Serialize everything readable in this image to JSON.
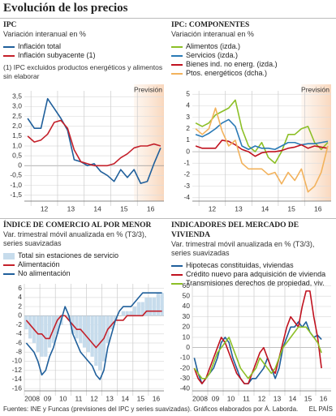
{
  "title": "Evolución de los precios",
  "source": "Fuentes: INE y Funcas (previsiones del IPC y series suavizadas). Gráficos elaborados por Á. Laborda.",
  "brand": "EL PAÍS",
  "chart_data": [
    {
      "type": "line",
      "title": "IPC",
      "subtitle": "Variación interanual en %",
      "note": "(1) IPC excluidos productos energéticos y alimentos sin elaborar",
      "annotation": "Previsión",
      "categories": [
        null,
        "12",
        null,
        null,
        null,
        "13",
        null,
        null,
        null,
        "14",
        null,
        null,
        null,
        "15",
        null,
        null,
        null,
        "16",
        null,
        null,
        null
      ],
      "series": [
        {
          "name": "Inflación total",
          "color": "#1f5f9b",
          "values": [
            2.4,
            1.9,
            1.9,
            3.4,
            2.9,
            2.4,
            1.8,
            0.3,
            0.2,
            0.0,
            0.1,
            -0.3,
            -0.5,
            -0.8,
            -0.2,
            -0.6,
            -0.2,
            -0.9,
            -0.8,
            0.1,
            0.9
          ]
        },
        {
          "name": "Inflación subyacente (1)",
          "color": "#c4202a",
          "values": [
            1.5,
            1.2,
            1.3,
            1.6,
            2.2,
            2.3,
            1.9,
            0.8,
            0.2,
            0.1,
            0.0,
            0.0,
            0.0,
            0.1,
            0.4,
            0.6,
            0.9,
            1.0,
            1.0,
            1.1,
            1.0
          ]
        }
      ],
      "ylim": [
        -1.8,
        3.8
      ],
      "yticks": [
        {
          "value": 3.5,
          "label": "3,5"
        },
        {
          "value": 3.0,
          "label": "3,0"
        },
        {
          "value": 2.5,
          "label": "2,5"
        },
        {
          "value": 2.0,
          "label": "2,0"
        },
        {
          "value": 1.5,
          "label": "1,5"
        },
        {
          "value": 1.0,
          "label": "1,0"
        },
        {
          "value": 0.5,
          "label": "0,5"
        },
        0,
        {
          "value": -0.5,
          "label": "-0,5"
        },
        {
          "value": -1.0,
          "label": "-1,0"
        },
        {
          "value": -1.5,
          "label": "-1,5"
        }
      ],
      "grid": true
    },
    {
      "type": "line",
      "title": "IPC: COMPONENTES",
      "subtitle": "Variación interanual en %",
      "annotation": "Previsión",
      "categories": [
        null,
        "12",
        null,
        null,
        null,
        "13",
        null,
        null,
        null,
        "14",
        null,
        null,
        null,
        "15",
        null,
        null,
        null,
        "16",
        null,
        null,
        null
      ],
      "series": [
        {
          "name": "Alimentos (izda.)",
          "color": "#8cbf26",
          "values": [
            2.5,
            2.2,
            2.5,
            3.2,
            3.5,
            3.8,
            4.5,
            2.0,
            0.5,
            0.0,
            0.8,
            -0.5,
            -1.0,
            0.0,
            1.5,
            1.5,
            2.0,
            2.2,
            0.8,
            0.2,
            0.8
          ]
        },
        {
          "name": "Servicios (izda.)",
          "color": "#2a7ab5",
          "values": [
            1.5,
            1.3,
            1.6,
            2.0,
            2.5,
            2.8,
            2.2,
            0.5,
            0.2,
            0.5,
            0.3,
            0.3,
            0.2,
            0.5,
            0.8,
            0.8,
            0.6,
            0.7,
            0.7,
            0.8,
            0.9
          ]
        },
        {
          "name": "Bienes ind. no energ. (izda.)",
          "color": "#c0121f",
          "values": [
            0.5,
            0.3,
            0.3,
            0.3,
            1.0,
            0.9,
            0.6,
            0.2,
            0.0,
            -0.4,
            -0.1,
            0.0,
            0.0,
            0.1,
            0.3,
            0.4,
            0.6,
            0.3,
            0.5,
            0.4,
            0.3
          ]
        },
        {
          "name": "Ptos. energéticos (dcha.)",
          "color": "#f2b25c",
          "values": [
            2.0,
            1.5,
            2.0,
            3.8,
            1.8,
            0.5,
            1.0,
            -1.0,
            -1.5,
            -1.5,
            -1.5,
            -2.0,
            -1.8,
            -2.8,
            -1.8,
            -2.5,
            -1.5,
            -3.5,
            -3.0,
            -1.8,
            0.5
          ]
        }
      ],
      "ylim": [
        -4.3,
        5.3
      ],
      "yticks": [
        5,
        4,
        3,
        2,
        1,
        0,
        -1,
        -2,
        -3,
        -4
      ],
      "grid": true
    },
    {
      "type": "line",
      "title": "ÍNDICE DE COMERCIO AL POR MENOR",
      "subtitle": "Var. trimestral móvil anualizada en % (T3/3), series suavizadas",
      "categories": [
        "2008",
        null,
        null,
        null,
        "09",
        null,
        null,
        null,
        "10",
        null,
        null,
        null,
        "11",
        null,
        null,
        null,
        "12",
        null,
        null,
        null,
        "13",
        null,
        null,
        null,
        "14",
        null,
        null,
        null,
        "15",
        null,
        null,
        null,
        "16",
        null,
        null,
        null
      ],
      "series": [
        {
          "name": "Total sin estaciones de servicio",
          "type": "bar",
          "color": "#c7dcec",
          "values": [
            -3,
            -5,
            -6,
            -8,
            -9,
            -9,
            -7,
            -6,
            -4,
            -2,
            0,
            -1,
            -4,
            -5,
            -6,
            -7,
            -8,
            -9,
            -11,
            -12,
            -10,
            -6,
            -3,
            -1,
            0,
            1,
            1,
            1,
            2,
            3,
            3,
            4,
            4,
            4,
            5,
            5
          ]
        },
        {
          "name": "Alimentación",
          "color": "#c4202a",
          "values": [
            -1,
            -2,
            -3,
            -4,
            -4,
            -5,
            -5,
            -3,
            -1,
            0,
            0,
            -1,
            -2,
            -3,
            -3,
            -4,
            -5,
            -6,
            -7,
            -6,
            -5,
            -3,
            -2,
            -1,
            -1,
            -1,
            0,
            0,
            0,
            0,
            0,
            1,
            1,
            1,
            1,
            1
          ]
        },
        {
          "name": "No alimentación",
          "color": "#1f5f9b",
          "values": [
            -6,
            -7,
            -8,
            -10,
            -13,
            -12,
            -9,
            -7,
            -4,
            -1,
            2,
            0,
            -4,
            -6,
            -8,
            -9,
            -10,
            -11,
            -13,
            -14,
            -12,
            -7,
            -4,
            -1,
            1,
            2,
            2,
            2,
            3,
            4,
            5,
            5,
            5,
            5,
            5,
            5
          ]
        }
      ],
      "ylim": [
        -16.5,
        7
      ],
      "yticks": [
        6,
        4,
        2,
        0,
        -2,
        -4,
        -6,
        -8,
        -10,
        -12,
        -14,
        -16
      ],
      "grid": true
    },
    {
      "type": "line",
      "title": "INDICADORES DEL MERCADO DE VIVIENDA",
      "subtitle": "Var. trimestral móvil anualizada en % (T3/3), series suavizadas",
      "categories": [
        "2008",
        null,
        null,
        null,
        "09",
        null,
        null,
        null,
        "10",
        null,
        null,
        null,
        "11",
        null,
        null,
        null,
        "12",
        null,
        null,
        null,
        "13",
        null,
        null,
        null,
        "14",
        null,
        null,
        null,
        "15",
        null,
        null,
        null,
        "16",
        null,
        null,
        null
      ],
      "series": [
        {
          "name": "Hipotecas constituidas, viviendas",
          "color": "#1f5f9b",
          "values": [
            -10,
            -25,
            -35,
            -30,
            -25,
            -20,
            -10,
            5,
            10,
            5,
            -10,
            -20,
            -30,
            -35,
            -35,
            -30,
            -30,
            -25,
            -20,
            -10,
            -20,
            -30,
            -20,
            0,
            10,
            20,
            20,
            25,
            20,
            25,
            15,
            10,
            12,
            8,
            null,
            null
          ]
        },
        {
          "name": "Crédito nuevo para adquisición de vivienda",
          "color": "#c0121f",
          "values": [
            -20,
            -30,
            -35,
            -30,
            -20,
            -10,
            0,
            10,
            5,
            -5,
            -15,
            -25,
            -30,
            -35,
            -35,
            -25,
            -15,
            -5,
            0,
            -10,
            -20,
            -25,
            -10,
            5,
            20,
            30,
            25,
            20,
            40,
            55,
            55,
            30,
            10,
            -20,
            null,
            null
          ]
        },
        {
          "name": "Transmisiones derechos de propiedad, viv.",
          "color": "#8cbf26",
          "values": [
            -20,
            -25,
            -30,
            -30,
            -25,
            -15,
            -5,
            0,
            5,
            10,
            0,
            -10,
            -20,
            -25,
            -30,
            -25,
            -20,
            -10,
            -15,
            -20,
            -25,
            -20,
            -10,
            0,
            5,
            10,
            15,
            20,
            20,
            20,
            15,
            10,
            5,
            -5,
            null,
            null
          ]
        }
      ],
      "ylim": [
        -42,
        62
      ],
      "yticks": [
        60,
        50,
        40,
        30,
        20,
        10,
        0,
        -10,
        -20,
        -30,
        -40
      ],
      "grid": true
    }
  ]
}
